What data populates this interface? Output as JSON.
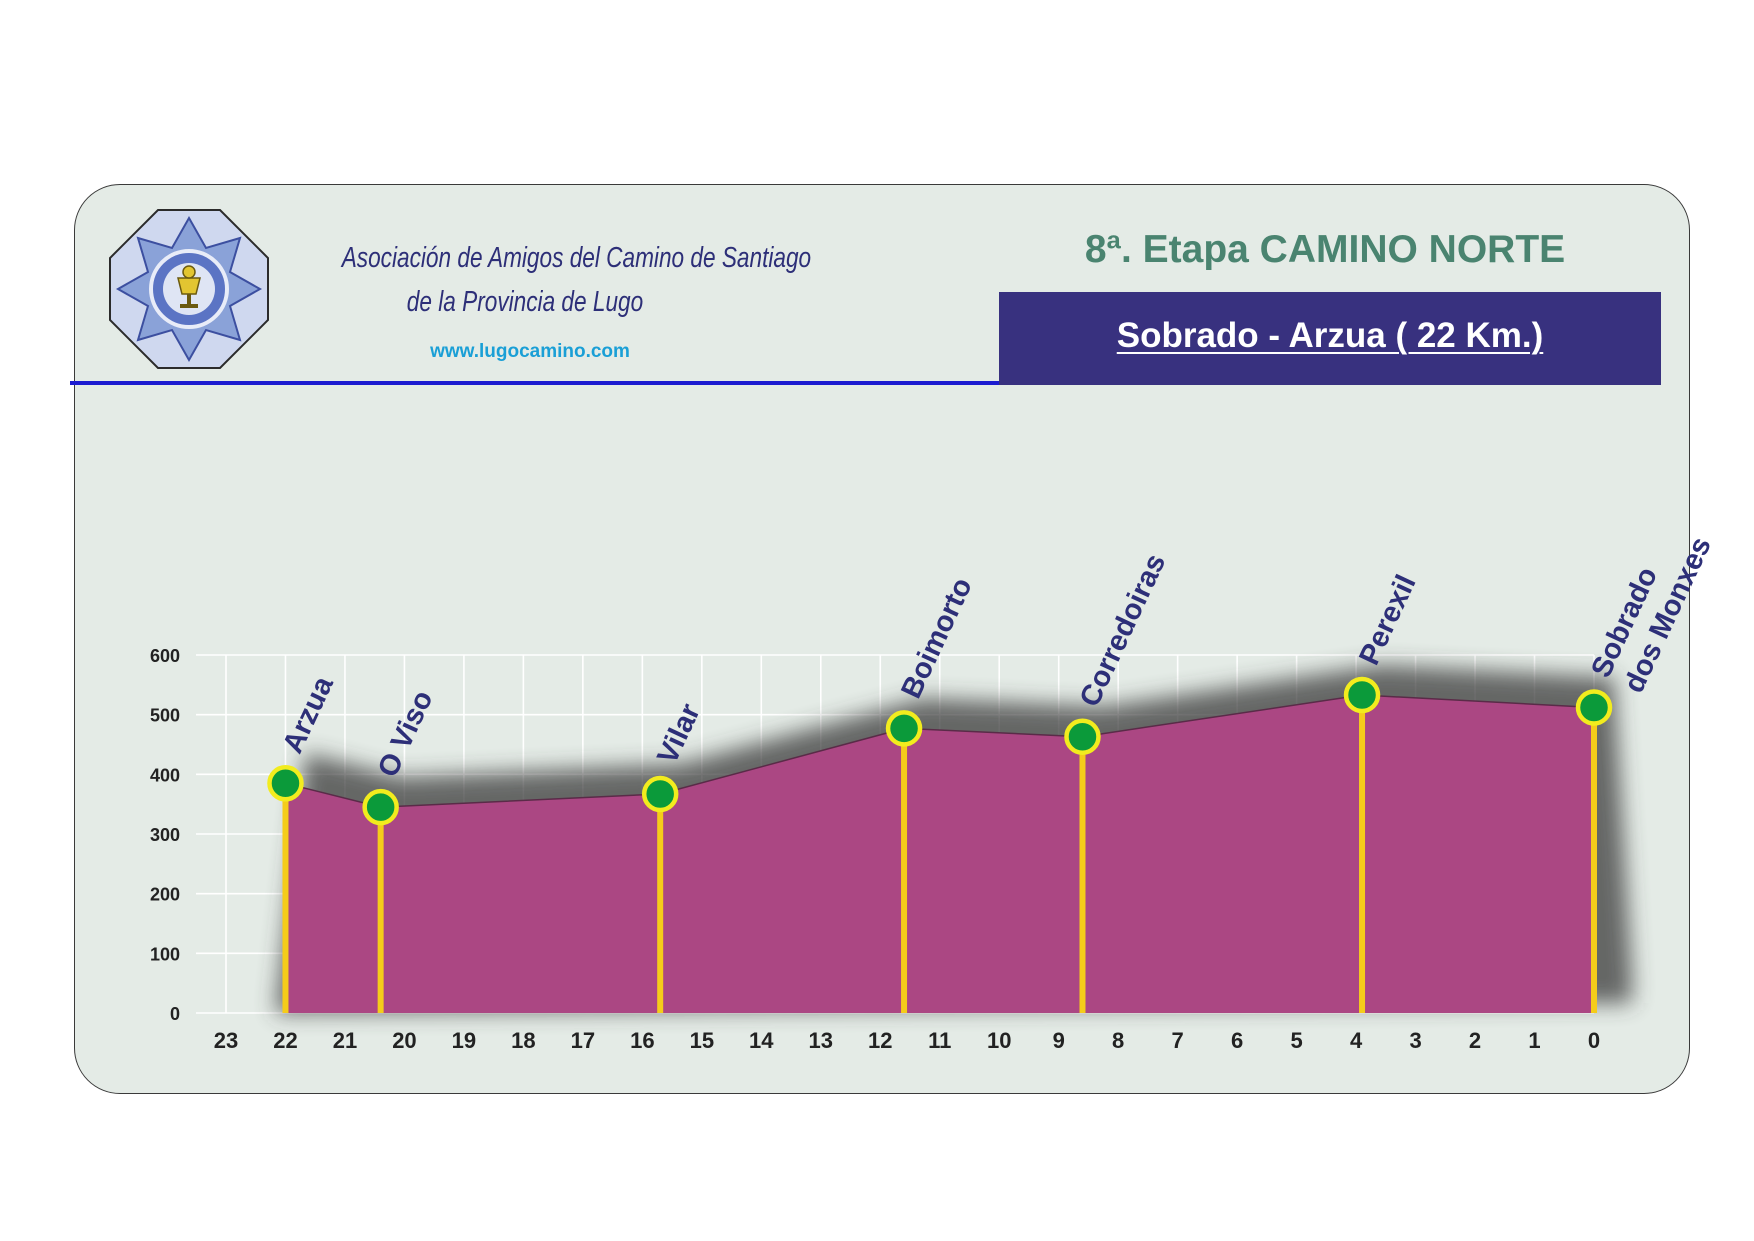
{
  "header": {
    "org_line1": "Asociación de Amigos del Camino de Santiago",
    "org_line2": "de la Provincia de Lugo",
    "website": "www.lugocamino.com",
    "stage_title": "8ª. Etapa CAMINO NORTE",
    "route": "Sobrado - Arzua ( 22 Km.)"
  },
  "colors": {
    "profile_fill": "#ab4783",
    "marker_fill": "#0b9a3a",
    "marker_ring": "#f2ec1e",
    "pole": "#f5cc1a",
    "place_label": "#2d2f78",
    "banner": "#38317f",
    "title_green": "#4a8470",
    "rule_blue": "#1b1bd0"
  },
  "logo": {
    "icon": "octagonal-seal-emblem-icon"
  },
  "chart_data": {
    "type": "area",
    "title": "",
    "xlabel": "",
    "ylabel": "",
    "x_reversed": true,
    "xlim": [
      23,
      0
    ],
    "ylim": [
      0,
      600
    ],
    "grid": true,
    "x_ticks": [
      "23",
      "22",
      "21",
      "20",
      "19",
      "18",
      "17",
      "16",
      "15",
      "14",
      "13",
      "12",
      "11",
      "10",
      "9",
      "8",
      "7",
      "6",
      "5",
      "4",
      "3",
      "2",
      "1",
      "0"
    ],
    "y_ticks": [
      "0",
      "100",
      "200",
      "300",
      "400",
      "500",
      "600"
    ],
    "series": [
      {
        "x": [
          22,
          20.4,
          15.7,
          11.6,
          8.6,
          3.9,
          0
        ],
        "y": [
          385,
          345,
          367,
          477,
          463,
          533,
          512
        ]
      }
    ],
    "places": [
      {
        "lines": [
          "Arzua"
        ],
        "km": 22,
        "elev": 385
      },
      {
        "lines": [
          "O Viso"
        ],
        "km": 20.4,
        "elev": 345
      },
      {
        "lines": [
          "Vilar"
        ],
        "km": 15.7,
        "elev": 367
      },
      {
        "lines": [
          "Boimorto"
        ],
        "km": 11.6,
        "elev": 477
      },
      {
        "lines": [
          "Corredoiras"
        ],
        "km": 8.6,
        "elev": 463
      },
      {
        "lines": [
          "Perexil"
        ],
        "km": 3.9,
        "elev": 533
      },
      {
        "lines": [
          "Sobrado",
          "dos Monxes"
        ],
        "km": 0,
        "elev": 512
      }
    ]
  }
}
